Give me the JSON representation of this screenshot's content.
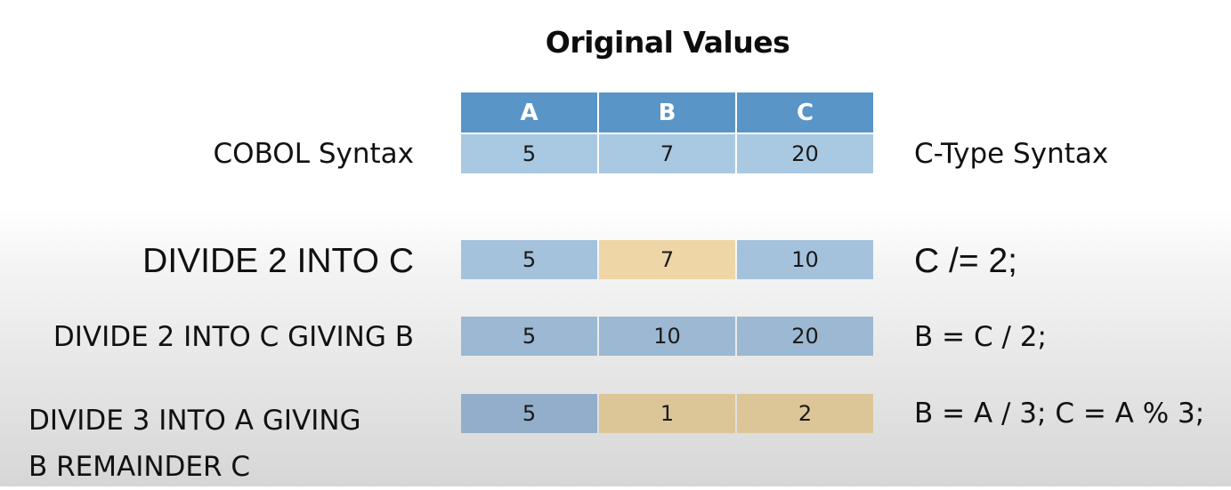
{
  "title": "Original Values",
  "headers": [
    "A",
    "B",
    "C"
  ],
  "left_header": "COBOL Syntax",
  "right_header": "C-Type Syntax",
  "original": [
    "5",
    "7",
    "20"
  ],
  "rows": [
    {
      "cobol": "DIVIDE 2 INTO C",
      "ctype": "C /= 2;",
      "values": [
        "5",
        "7",
        "10"
      ],
      "highlight": [
        "blue",
        "tan",
        "blue"
      ]
    },
    {
      "cobol": "DIVIDE 2 INTO C GIVING B",
      "ctype": "B = C / 2;",
      "values": [
        "5",
        "10",
        "20"
      ],
      "highlight": [
        "blue",
        "blue",
        "blue"
      ]
    },
    {
      "cobol_line1": "DIVIDE 3 INTO A GIVING",
      "cobol_line2": "B REMAINDER C",
      "ctype": "B = A / 3; C = A % 3;",
      "values": [
        "5",
        "1",
        "2"
      ],
      "highlight": [
        "blue",
        "tan",
        "tan"
      ]
    }
  ],
  "colors": {
    "header_blue": "#5a95c8",
    "cell_blue": "#a4c2dc",
    "cell_tan": "#efd6a6"
  }
}
